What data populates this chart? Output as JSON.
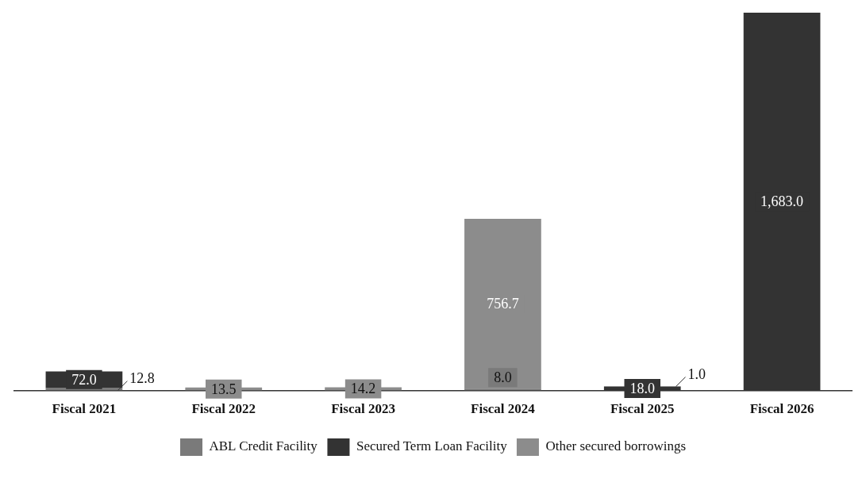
{
  "chart_data": {
    "type": "bar",
    "stacked": true,
    "categories": [
      "Fiscal 2021",
      "Fiscal 2022",
      "Fiscal 2023",
      "Fiscal 2024",
      "Fiscal 2025",
      "Fiscal 2026"
    ],
    "series": [
      {
        "name": "ABL Credit Facility",
        "color": "#7a7a7a",
        "values": [
          12.8,
          null,
          null,
          8.0,
          null,
          null
        ],
        "value_labels": [
          "12.8",
          null,
          null,
          "8.0",
          null,
          null
        ]
      },
      {
        "name": "Secured Term Loan Facility",
        "color": "#333333",
        "values": [
          72.0,
          null,
          null,
          null,
          18.0,
          1683.0
        ],
        "value_labels": [
          "72.0",
          null,
          null,
          null,
          "18.0",
          "1,683.0"
        ]
      },
      {
        "name": "Other secured borrowings",
        "color": "#8c8c8c",
        "values": [
          null,
          13.5,
          14.2,
          756.7,
          1.0,
          null
        ],
        "value_labels": [
          null,
          "13.5",
          "14.2",
          "756.7",
          "1.0",
          null
        ]
      }
    ],
    "grid": false,
    "legend": "bottom"
  }
}
